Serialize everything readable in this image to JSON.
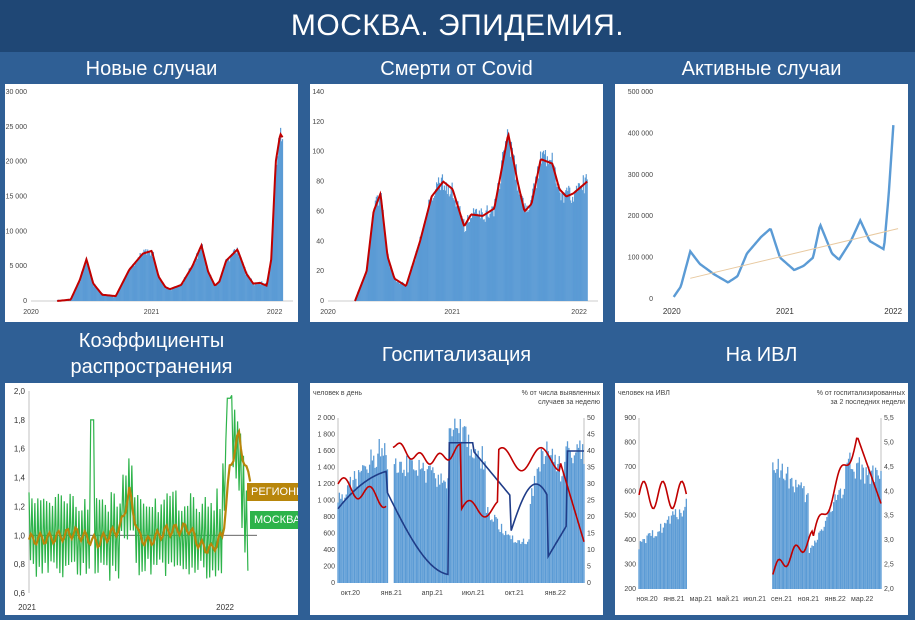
{
  "page_title": "МОСКВА. ЭПИДЕМИЯ.",
  "panels": {
    "new_cases": {
      "title": "Новые случаи"
    },
    "deaths": {
      "title": "Смерти от Covid"
    },
    "active": {
      "title": "Активные случаи"
    },
    "r_coef": {
      "title": "Коэффициенты распространения",
      "legend_regions": "РЕГИОНЫ",
      "legend_moscow": "МОСКВА"
    },
    "hosp": {
      "title": "Госпитализация",
      "left_label": "человек в день",
      "right_label_1": "% от числа выявленных",
      "right_label_2": "случаев за неделю"
    },
    "ivl": {
      "title": "На ИВЛ",
      "left_label": "человек на ИВЛ",
      "right_label_1": "% от госпитализированных",
      "right_label_2": "за 2 последних недели"
    }
  },
  "colors": {
    "bar": "#5b9bd5",
    "red": "#c00000",
    "dark_blue": "#1f3c88",
    "line_blue": "#5b9bd5",
    "green": "#2db34a",
    "gold": "#b8860b"
  },
  "chart_data": [
    {
      "id": "new_cases",
      "type": "area",
      "ylim": [
        0,
        30000
      ],
      "yticks": [
        "30 000",
        "25 000",
        "20 000",
        "15 000",
        "10 000",
        "5 000",
        "0"
      ],
      "xticks": [
        "2020",
        "2021",
        "2022"
      ],
      "series": [
        {
          "x": [
            0,
            0.06,
            0.1,
            0.13,
            0.16,
            0.2,
            0.26,
            0.32,
            0.38,
            0.42,
            0.45,
            0.48,
            0.5,
            0.55,
            0.6,
            0.64,
            0.67,
            0.7,
            0.72,
            0.75,
            0.8,
            0.84,
            0.87,
            0.9,
            0.93,
            0.95,
            0.97,
            0.99,
            1.0
          ],
          "values": [
            0,
            200,
            3000,
            6000,
            2500,
            900,
            700,
            4500,
            6800,
            7200,
            3500,
            2000,
            1700,
            2300,
            5000,
            8000,
            4200,
            2200,
            2800,
            5800,
            7400,
            3900,
            2500,
            2600,
            2200,
            6000,
            20000,
            24000,
            23500
          ]
        }
      ]
    },
    {
      "id": "deaths",
      "type": "area",
      "ylim": [
        0,
        140
      ],
      "yticks": [
        "140",
        "120",
        "100",
        "80",
        "60",
        "40",
        "20",
        "0"
      ],
      "xticks": [
        "2020",
        "2021",
        "2022"
      ],
      "series": [
        {
          "x": [
            0.0,
            0.05,
            0.08,
            0.11,
            0.14,
            0.17,
            0.22,
            0.28,
            0.33,
            0.38,
            0.42,
            0.47,
            0.5,
            0.55,
            0.6,
            0.66,
            0.7,
            0.73,
            0.76,
            0.8,
            0.85,
            0.88,
            0.91,
            0.94,
            0.97,
            1.0
          ],
          "values": [
            0,
            20,
            60,
            72,
            30,
            15,
            10,
            40,
            70,
            80,
            75,
            50,
            58,
            57,
            62,
            112,
            80,
            60,
            65,
            95,
            92,
            75,
            70,
            72,
            76,
            80
          ]
        }
      ]
    },
    {
      "id": "active",
      "type": "line",
      "ylim": [
        0,
        500000
      ],
      "yticks": [
        "500 000",
        "400 000",
        "300 000",
        "200 000",
        "100 000",
        "0"
      ],
      "xticks": [
        "2020",
        "2021",
        "2022"
      ],
      "series": [
        {
          "x": [
            0.05,
            0.08,
            0.12,
            0.16,
            0.22,
            0.28,
            0.32,
            0.36,
            0.42,
            0.46,
            0.5,
            0.56,
            0.6,
            0.64,
            0.67,
            0.72,
            0.75,
            0.8,
            0.84,
            0.88,
            0.91,
            0.94,
            0.96,
            0.98
          ],
          "values": [
            5000,
            30000,
            115000,
            85000,
            60000,
            40000,
            55000,
            110000,
            150000,
            170000,
            100000,
            70000,
            80000,
            100000,
            180000,
            110000,
            95000,
            140000,
            190000,
            140000,
            130000,
            120000,
            250000,
            420000
          ]
        },
        {
          "name": "trend",
          "x": [
            0.12,
            1.0
          ],
          "values": [
            50000,
            170000
          ]
        }
      ]
    },
    {
      "id": "r_coef",
      "type": "line",
      "ylim": [
        0.6,
        2.0
      ],
      "yticks": [
        "2,0",
        "1,8",
        "1,6",
        "1,4",
        "1,2",
        "1,0",
        "0,8",
        "0,6"
      ],
      "xticks": [
        "2021",
        "2022"
      ],
      "series": [
        {
          "name": "МОСКВА",
          "pattern": "oscillating"
        },
        {
          "name": "РЕГИОНЫ",
          "x": [
            0.0,
            0.1,
            0.2,
            0.3,
            0.4,
            0.44,
            0.48,
            0.52,
            0.6,
            0.7,
            0.75,
            0.8,
            0.85,
            0.88,
            0.92,
            0.95,
            0.97
          ],
          "values": [
            0.97,
            0.98,
            1.02,
            0.95,
            1.05,
            1.3,
            1.0,
            0.95,
            1.03,
            1.05,
            0.93,
            0.9,
            1.0,
            1.45,
            1.7,
            1.45,
            1.4
          ]
        }
      ]
    },
    {
      "id": "hosp",
      "type": "bar+line",
      "ylim": [
        0,
        2000
      ],
      "yticks": [
        "2 000",
        "1 800",
        "1 600",
        "1 400",
        "1 200",
        "1 000",
        "800",
        "600",
        "400",
        "200",
        "0"
      ],
      "y2ticks": [
        "50",
        "45",
        "40",
        "35",
        "30",
        "25",
        "20",
        "15",
        "10",
        "5",
        "0"
      ],
      "xticks": [
        "окт.20",
        "янв.21",
        "апр.21",
        "июл.21",
        "окт.21",
        "янв.22"
      ]
    },
    {
      "id": "ivl",
      "type": "bar+line",
      "ylim": [
        200,
        900
      ],
      "yticks": [
        "900",
        "800",
        "700",
        "600",
        "500",
        "400",
        "300",
        "200"
      ],
      "y2ticks": [
        "5,5",
        "5,0",
        "4,5",
        "4,0",
        "3,5",
        "3,0",
        "2,5",
        "2,0"
      ],
      "xticks": [
        "ноя.20",
        "янв.21",
        "мар.21",
        "май.21",
        "июл.21",
        "сен.21",
        "ноя.21",
        "янв.22",
        "мар.22"
      ]
    }
  ]
}
